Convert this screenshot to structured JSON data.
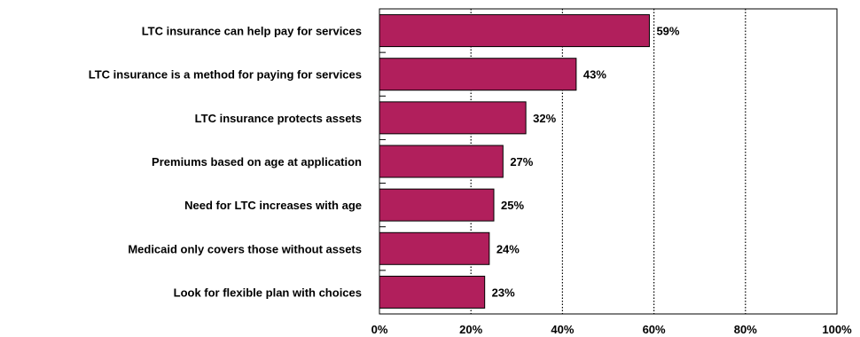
{
  "chart_data": {
    "type": "bar",
    "orientation": "horizontal",
    "categories": [
      "LTC insurance can help pay for services",
      "LTC insurance is a method for paying for services",
      "LTC insurance protects assets",
      "Premiums based on age at application",
      "Need for LTC increases with age",
      "Medicaid only covers those without assets",
      "Look for flexible plan with choices"
    ],
    "values": [
      59,
      43,
      32,
      27,
      25,
      24,
      23
    ],
    "value_labels": [
      "59%",
      "43%",
      "32%",
      "27%",
      "25%",
      "24%",
      "23%"
    ],
    "xlim": [
      0,
      100
    ],
    "ticks": [
      0,
      20,
      40,
      60,
      80,
      100
    ],
    "tick_labels": [
      "0%",
      "20%",
      "40%",
      "60%",
      "80%",
      "100%"
    ],
    "grid": "vertical-dotted",
    "colors": {
      "bar": "#b11f5c",
      "bar_border": "#000000"
    }
  }
}
